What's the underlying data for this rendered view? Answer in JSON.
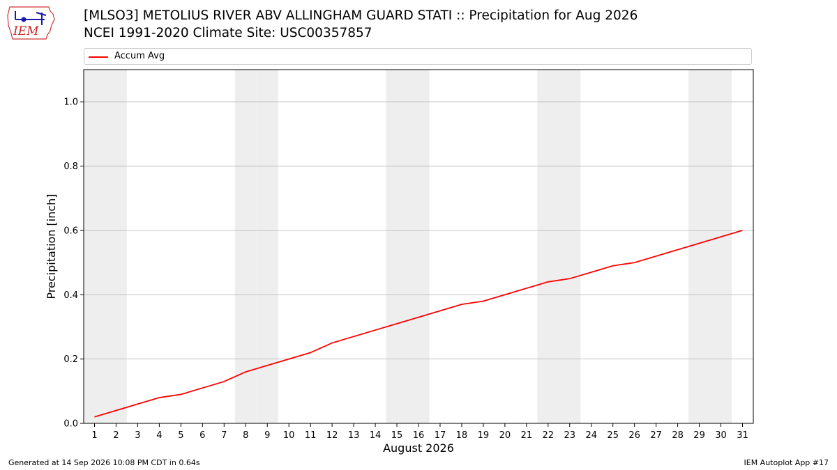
{
  "header": {
    "title_line1": "[MLSO3] METOLIUS RIVER ABV ALLINGHAM GUARD STATI :: Precipitation for Aug 2026",
    "title_line2": "NCEI 1991-2020 Climate Site: USC00357857"
  },
  "logo": {
    "text": "IEM",
    "icon": "iowa-state-outline-weather-station-logo"
  },
  "colors": {
    "line": "#ff0000",
    "weekend_shade": "#eeeeee",
    "grid": "#b0b0b0"
  },
  "chart_data": {
    "type": "line",
    "title": "[MLSO3] METOLIUS RIVER ABV ALLINGHAM GUARD STATI :: Precipitation for Aug 2026",
    "subtitle": "NCEI 1991-2020 Climate Site: USC00357857",
    "xlabel": "August 2026",
    "ylabel": "Precipitation [inch]",
    "x": [
      1,
      2,
      3,
      4,
      5,
      6,
      7,
      8,
      9,
      10,
      11,
      12,
      13,
      14,
      15,
      16,
      17,
      18,
      19,
      20,
      21,
      22,
      23,
      24,
      25,
      26,
      27,
      28,
      29,
      30,
      31
    ],
    "xlim": [
      0.5,
      31.5
    ],
    "ylim": [
      0,
      1.1
    ],
    "yticks": [
      0.0,
      0.2,
      0.4,
      0.6,
      0.8,
      1.0
    ],
    "ytick_labels": [
      "0.0",
      "0.2",
      "0.4",
      "0.6",
      "0.8",
      "1.0"
    ],
    "grid": "horizontal",
    "legend": "top",
    "shaded_weekend_days": [
      1,
      2,
      8,
      9,
      15,
      16,
      22,
      23,
      29,
      30
    ],
    "series": [
      {
        "name": "Accum Avg",
        "color": "#ff0000",
        "values": [
          0.02,
          0.04,
          0.06,
          0.08,
          0.09,
          0.11,
          0.13,
          0.16,
          0.18,
          0.2,
          0.22,
          0.25,
          0.27,
          0.29,
          0.31,
          0.33,
          0.35,
          0.37,
          0.38,
          0.4,
          0.42,
          0.44,
          0.45,
          0.47,
          0.49,
          0.5,
          0.52,
          0.54,
          0.56,
          0.58,
          0.6
        ]
      }
    ]
  },
  "footer": {
    "left": "Generated at 14 Sep 2026 10:08 PM CDT in 0.64s",
    "right": "IEM Autoplot App #17"
  }
}
